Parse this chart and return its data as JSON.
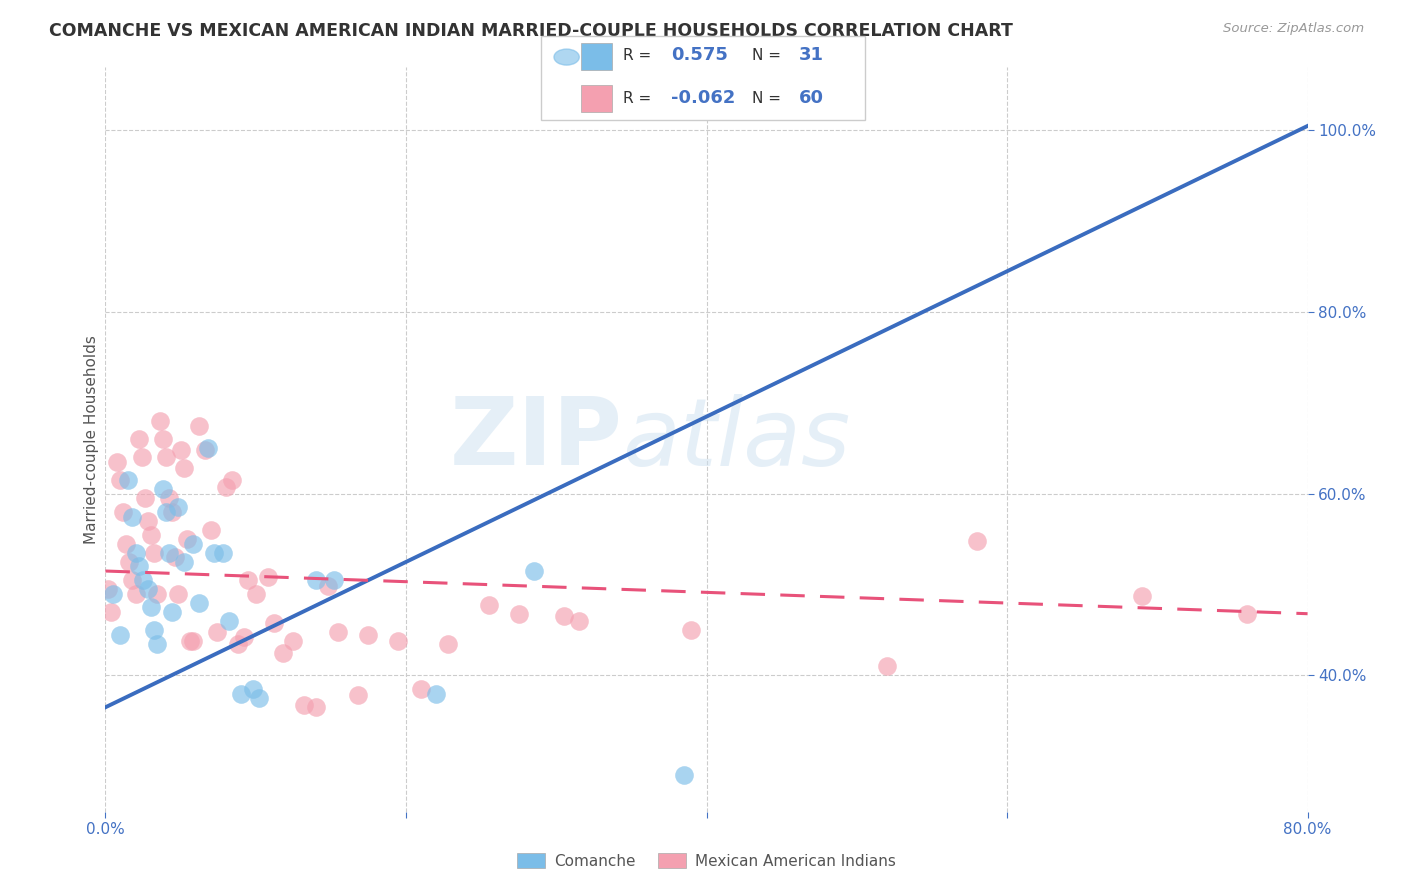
{
  "title": "COMANCHE VS MEXICAN AMERICAN INDIAN MARRIED-COUPLE HOUSEHOLDS CORRELATION CHART",
  "source": "Source: ZipAtlas.com",
  "ylabel": "Married-couple Households",
  "xlim": [
    0.0,
    0.8
  ],
  "ylim": [
    0.25,
    1.07
  ],
  "y_ticks_right": [
    0.4,
    0.6,
    0.8,
    1.0
  ],
  "y_tick_labels_right": [
    "40.0%",
    "60.0%",
    "80.0%",
    "100.0%"
  ],
  "comanche_color": "#7bbde8",
  "mexican_color": "#f4a0b0",
  "comanche_line_color": "#3a6cbf",
  "mexican_line_color": "#e8527a",
  "watermark_zip": "ZIP",
  "watermark_atlas": "atlas",
  "comanche_x": [
    0.005,
    0.01,
    0.015,
    0.018,
    0.02,
    0.022,
    0.025,
    0.028,
    0.03,
    0.032,
    0.034,
    0.038,
    0.04,
    0.042,
    0.044,
    0.048,
    0.052,
    0.058,
    0.062,
    0.068,
    0.072,
    0.078,
    0.082,
    0.09,
    0.098,
    0.102,
    0.14,
    0.152,
    0.22,
    0.285,
    0.385
  ],
  "comanche_y": [
    0.49,
    0.445,
    0.615,
    0.575,
    0.535,
    0.52,
    0.505,
    0.495,
    0.475,
    0.45,
    0.435,
    0.605,
    0.58,
    0.535,
    0.47,
    0.585,
    0.525,
    0.545,
    0.48,
    0.65,
    0.535,
    0.535,
    0.46,
    0.38,
    0.385,
    0.375,
    0.505,
    0.505,
    0.38,
    0.515,
    0.29
  ],
  "mexican_x": [
    0.002,
    0.004,
    0.008,
    0.01,
    0.012,
    0.014,
    0.016,
    0.018,
    0.02,
    0.022,
    0.024,
    0.026,
    0.028,
    0.03,
    0.032,
    0.034,
    0.036,
    0.038,
    0.04,
    0.042,
    0.044,
    0.046,
    0.048,
    0.05,
    0.052,
    0.054,
    0.056,
    0.058,
    0.062,
    0.066,
    0.07,
    0.074,
    0.08,
    0.084,
    0.088,
    0.092,
    0.095,
    0.1,
    0.108,
    0.112,
    0.118,
    0.125,
    0.132,
    0.14,
    0.148,
    0.155,
    0.168,
    0.175,
    0.195,
    0.21,
    0.228,
    0.255,
    0.275,
    0.305,
    0.315,
    0.39,
    0.52,
    0.58,
    0.69,
    0.76
  ],
  "mexican_y": [
    0.495,
    0.47,
    0.635,
    0.615,
    0.58,
    0.545,
    0.525,
    0.505,
    0.49,
    0.66,
    0.64,
    0.595,
    0.57,
    0.555,
    0.535,
    0.49,
    0.68,
    0.66,
    0.64,
    0.595,
    0.58,
    0.53,
    0.49,
    0.648,
    0.628,
    0.55,
    0.438,
    0.438,
    0.675,
    0.648,
    0.56,
    0.448,
    0.608,
    0.615,
    0.435,
    0.442,
    0.505,
    0.49,
    0.508,
    0.458,
    0.425,
    0.438,
    0.368,
    0.365,
    0.498,
    0.448,
    0.378,
    0.445,
    0.438,
    0.385,
    0.435,
    0.478,
    0.468,
    0.465,
    0.46,
    0.45,
    0.41,
    0.548,
    0.488,
    0.468
  ],
  "comanche_trendline_x": [
    0.0,
    0.8
  ],
  "comanche_trendline_y": [
    0.365,
    1.005
  ],
  "mexican_trendline_x": [
    0.0,
    0.8
  ],
  "mexican_trendline_y": [
    0.515,
    0.468
  ],
  "legend_label_blue": "Comanche",
  "legend_label_pink": "Mexican American Indians",
  "background_color": "#ffffff",
  "grid_color": "#cccccc"
}
